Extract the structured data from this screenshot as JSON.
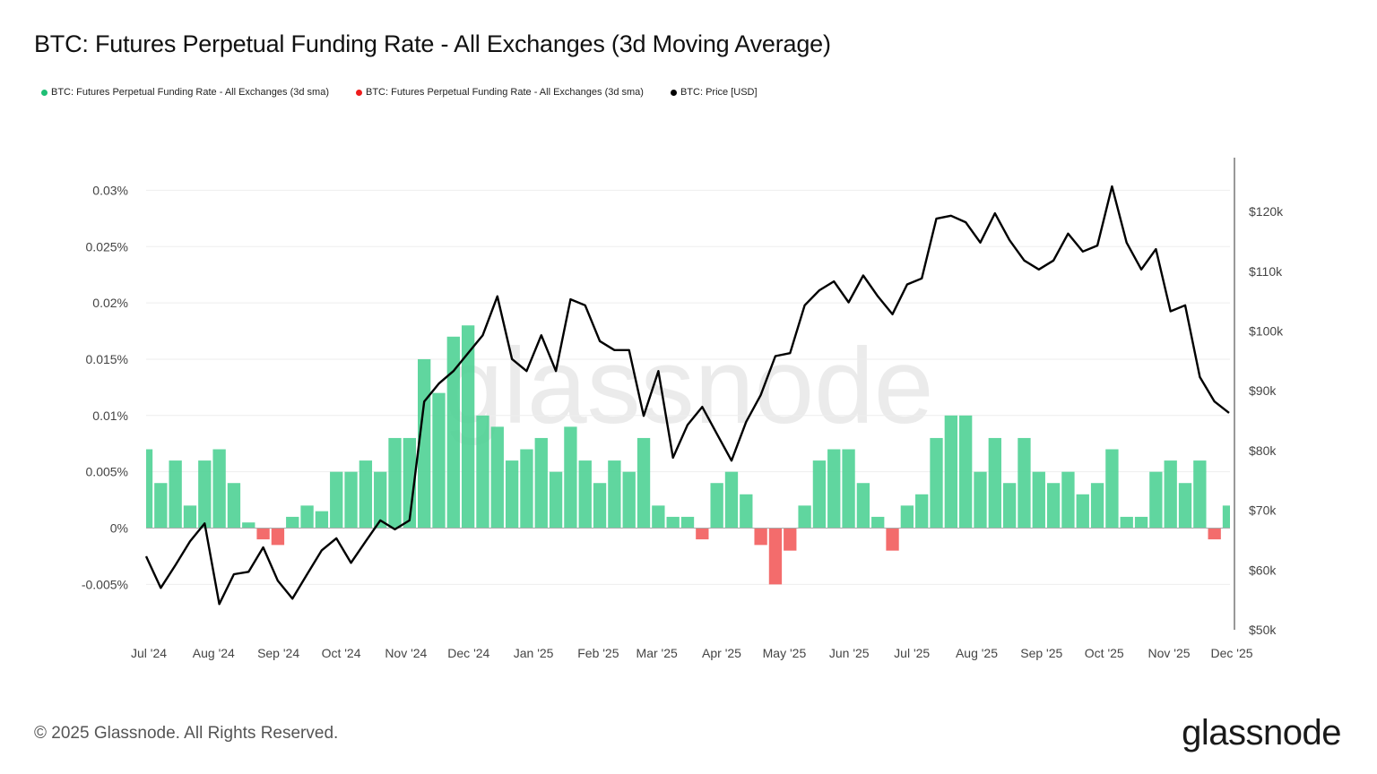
{
  "title": "BTC: Futures Perpetual Funding Rate - All Exchanges (3d Moving Average)",
  "legend": [
    {
      "label": "BTC: Futures Perpetual Funding Rate - All Exchanges (3d sma)",
      "color": "#1fbf75"
    },
    {
      "label": "BTC: Futures Perpetual Funding Rate - All Exchanges (3d sma)",
      "color": "#ee1c1c"
    },
    {
      "label": "BTC: Price [USD]",
      "color": "#000000"
    }
  ],
  "watermark": "glassnode",
  "footer": {
    "copyright": "© 2025 Glassnode. All Rights Reserved.",
    "logo": "glassnode"
  },
  "chart_data": {
    "type": "bar+line",
    "title": "BTC: Futures Perpetual Funding Rate - All Exchanges (3d Moving Average)",
    "grid": true,
    "legend_position": "top-left",
    "colors": {
      "positive": "#4fd195",
      "negative": "#f25c5c",
      "price": "#000000"
    },
    "y_left": {
      "range": [
        -0.0075,
        0.0305
      ],
      "unit": "%",
      "ticks": [
        {
          "v": 0.03,
          "label": "0.03%"
        },
        {
          "v": 0.025,
          "label": "0.025%"
        },
        {
          "v": 0.02,
          "label": "0.02%"
        },
        {
          "v": 0.015,
          "label": "0.015%"
        },
        {
          "v": 0.01,
          "label": "0.01%"
        },
        {
          "v": 0.005,
          "label": "0.005%"
        },
        {
          "v": 0,
          "label": "0%"
        },
        {
          "v": -0.005,
          "label": "-0.005%"
        }
      ]
    },
    "y_right": {
      "range": [
        50,
        128.9
      ],
      "unit": "k USD",
      "scale": "linear",
      "ticks": [
        {
          "v": 120,
          "label": "$120k"
        },
        {
          "v": 110,
          "label": "$110k"
        },
        {
          "v": 100,
          "label": "$100k"
        },
        {
          "v": 90,
          "label": "$90k"
        },
        {
          "v": 80,
          "label": "$80k"
        },
        {
          "v": 70,
          "label": "$70k"
        },
        {
          "v": 60,
          "label": "$60k"
        },
        {
          "v": 50,
          "label": "$50k"
        }
      ]
    },
    "x": {
      "range": [
        "2024-07-01",
        "2025-12-01"
      ],
      "ticks": [
        {
          "date": "2024-07-01",
          "label": "Jul '24"
        },
        {
          "date": "2024-08-01",
          "label": "Aug '24"
        },
        {
          "date": "2024-09-01",
          "label": "Sep '24"
        },
        {
          "date": "2024-10-01",
          "label": "Oct '24"
        },
        {
          "date": "2024-11-01",
          "label": "Nov '24"
        },
        {
          "date": "2024-12-01",
          "label": "Dec '24"
        },
        {
          "date": "2025-01-01",
          "label": "Jan '25"
        },
        {
          "date": "2025-02-01",
          "label": "Feb '25"
        },
        {
          "date": "2025-03-01",
          "label": "Mar '25"
        },
        {
          "date": "2025-04-01",
          "label": "Apr '25"
        },
        {
          "date": "2025-05-01",
          "label": "May '25"
        },
        {
          "date": "2025-06-01",
          "label": "Jun '25"
        },
        {
          "date": "2025-07-01",
          "label": "Jul '25"
        },
        {
          "date": "2025-08-01",
          "label": "Aug '25"
        },
        {
          "date": "2025-09-01",
          "label": "Sep '25"
        },
        {
          "date": "2025-10-01",
          "label": "Oct '25"
        },
        {
          "date": "2025-11-01",
          "label": "Nov '25"
        },
        {
          "date": "2025-12-01",
          "label": "Dec '25"
        }
      ]
    },
    "dates": [
      "2024-07-01",
      "2024-07-08",
      "2024-07-15",
      "2024-07-22",
      "2024-07-29",
      "2024-08-05",
      "2024-08-12",
      "2024-08-19",
      "2024-08-26",
      "2024-09-02",
      "2024-09-09",
      "2024-09-16",
      "2024-09-23",
      "2024-09-30",
      "2024-10-07",
      "2024-10-14",
      "2024-10-21",
      "2024-10-28",
      "2024-11-04",
      "2024-11-11",
      "2024-11-18",
      "2024-11-25",
      "2024-12-02",
      "2024-12-09",
      "2024-12-16",
      "2024-12-23",
      "2024-12-30",
      "2025-01-06",
      "2025-01-13",
      "2025-01-20",
      "2025-01-27",
      "2025-02-03",
      "2025-02-10",
      "2025-02-17",
      "2025-02-24",
      "2025-03-03",
      "2025-03-10",
      "2025-03-17",
      "2025-03-24",
      "2025-03-31",
      "2025-04-07",
      "2025-04-14",
      "2025-04-21",
      "2025-04-28",
      "2025-05-05",
      "2025-05-12",
      "2025-05-19",
      "2025-05-26",
      "2025-06-02",
      "2025-06-09",
      "2025-06-16",
      "2025-06-23",
      "2025-06-30",
      "2025-07-07",
      "2025-07-14",
      "2025-07-21",
      "2025-07-28",
      "2025-08-04",
      "2025-08-11",
      "2025-08-18",
      "2025-08-25",
      "2025-09-01",
      "2025-09-08",
      "2025-09-15",
      "2025-09-22",
      "2025-09-29",
      "2025-10-06",
      "2025-10-13",
      "2025-10-20",
      "2025-10-27",
      "2025-11-03",
      "2025-11-10",
      "2025-11-17",
      "2025-11-24",
      "2025-12-01"
    ],
    "series": [
      {
        "name": "BTC: Futures Perpetual Funding Rate - All Exchanges (3d sma)",
        "axis": "left",
        "type": "bar",
        "values": [
          0.007,
          0.004,
          0.006,
          0.002,
          0.006,
          0.007,
          0.004,
          0.0005,
          -0.001,
          -0.0015,
          0.001,
          0.002,
          0.0015,
          0.005,
          0.005,
          0.006,
          0.005,
          0.008,
          0.008,
          0.015,
          0.012,
          0.017,
          0.018,
          0.01,
          0.009,
          0.006,
          0.007,
          0.008,
          0.005,
          0.009,
          0.006,
          0.004,
          0.006,
          0.005,
          0.008,
          0.002,
          0.001,
          0.001,
          -0.001,
          0.004,
          0.005,
          0.003,
          -0.0015,
          -0.005,
          -0.002,
          0.002,
          0.006,
          0.007,
          0.007,
          0.004,
          0.001,
          -0.002,
          0.002,
          0.003,
          0.008,
          0.01,
          0.01,
          0.005,
          0.008,
          0.004,
          0.008,
          0.005,
          0.004,
          0.005,
          0.003,
          0.004,
          0.007,
          0.001,
          0.001,
          0.005,
          0.006,
          0.004,
          0.006,
          -0.001,
          0.002
        ]
      },
      {
        "name": "BTC: Price [USD]",
        "axis": "right",
        "type": "line",
        "unit": "k USD",
        "values": [
          62.3,
          57,
          60.8,
          64.8,
          67.8,
          54.3,
          59.3,
          59.7,
          63.8,
          58.2,
          55.2,
          59.3,
          63.3,
          65.3,
          61.2,
          64.8,
          68.3,
          66.8,
          68.3,
          88.2,
          91.2,
          93.3,
          96.3,
          99.3,
          105.8,
          95.3,
          93.3,
          99.3,
          93.3,
          105.3,
          104.3,
          98.3,
          96.8,
          96.8,
          85.8,
          93.3,
          78.8,
          84.3,
          87.3,
          82.8,
          78.3,
          84.8,
          89.3,
          95.8,
          96.3,
          104.3,
          106.8,
          108.3,
          104.8,
          109.3,
          105.8,
          102.8,
          107.8,
          108.8,
          118.8,
          119.3,
          118.2,
          114.8,
          119.7,
          115.2,
          111.8,
          110.3,
          111.8,
          116.3,
          113.3,
          114.3,
          124.2,
          114.8,
          110.3,
          113.7,
          103.3,
          104.3,
          92.3,
          88.2,
          86.3
        ]
      }
    ]
  }
}
